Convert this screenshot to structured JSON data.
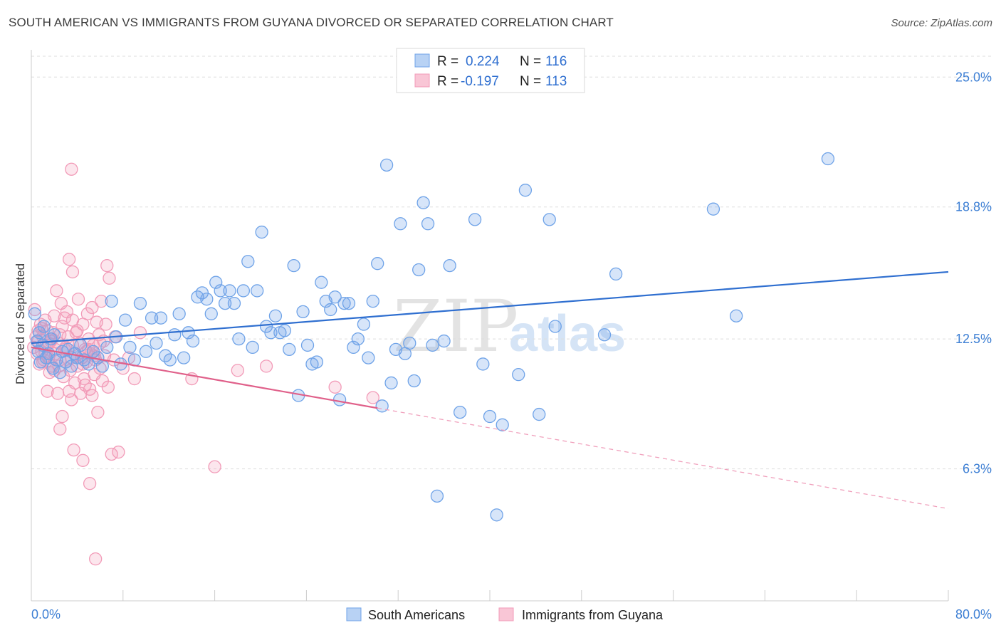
{
  "title": "SOUTH AMERICAN VS IMMIGRANTS FROM GUYANA DIVORCED OR SEPARATED CORRELATION CHART",
  "source": "Source: ZipAtlas.com",
  "watermark": {
    "zip": "ZIP",
    "atlas": "atlas"
  },
  "colors": {
    "blue": "#6fa3e8",
    "blue_line": "#2f6fd0",
    "pink": "#f29bb8",
    "pink_line": "#e0608a",
    "tick_text": "#3d7fd4"
  },
  "legend": {
    "rows": [
      {
        "r_label": "R =",
        "r_value": "0.224",
        "n_label": "N =",
        "n_value": "116"
      },
      {
        "r_label": "R =",
        "r_value": "-0.197",
        "n_label": "N =",
        "n_value": "113"
      }
    ]
  },
  "chart_data": {
    "type": "scatter",
    "xlabel": "",
    "ylabel": "Divorced or Separated",
    "xlim": [
      0,
      80
    ],
    "ylim": [
      0,
      26.3
    ],
    "x_tick_labels": [
      "0.0%",
      "80.0%"
    ],
    "y_ticks": [
      25.0,
      18.8,
      12.5,
      6.3
    ],
    "y_tick_labels": [
      "25.0%",
      "18.8%",
      "12.5%",
      "6.3%"
    ],
    "grid": "horizontal dashed",
    "legend_placement": "top-center",
    "series": [
      {
        "name": "South Americans",
        "trend": {
          "x": [
            0,
            80
          ],
          "y": [
            12.3,
            15.7
          ],
          "style": "solid"
        },
        "points": [
          [
            0.3,
            13.7
          ],
          [
            0.5,
            12.4
          ],
          [
            0.6,
            11.9
          ],
          [
            0.7,
            12.8
          ],
          [
            0.8,
            11.4
          ],
          [
            1.0,
            12.2
          ],
          [
            1.1,
            13.1
          ],
          [
            1.3,
            11.6
          ],
          [
            1.5,
            11.8
          ],
          [
            1.7,
            12.5
          ],
          [
            1.9,
            11.1
          ],
          [
            2.0,
            12.7
          ],
          [
            2.2,
            11.5
          ],
          [
            2.5,
            10.9
          ],
          [
            2.7,
            11.9
          ],
          [
            3.0,
            11.4
          ],
          [
            3.2,
            12.0
          ],
          [
            3.5,
            11.2
          ],
          [
            3.8,
            11.8
          ],
          [
            4.0,
            11.6
          ],
          [
            4.3,
            12.2
          ],
          [
            4.6,
            11.5
          ],
          [
            5.0,
            11.3
          ],
          [
            5.4,
            11.9
          ],
          [
            5.8,
            11.6
          ],
          [
            6.2,
            11.2
          ],
          [
            6.6,
            12.1
          ],
          [
            7.0,
            14.3
          ],
          [
            7.4,
            12.6
          ],
          [
            7.8,
            11.3
          ],
          [
            8.2,
            13.4
          ],
          [
            8.6,
            12.1
          ],
          [
            9.0,
            11.5
          ],
          [
            9.5,
            14.2
          ],
          [
            10.0,
            11.9
          ],
          [
            10.5,
            13.5
          ],
          [
            10.9,
            12.3
          ],
          [
            11.3,
            13.5
          ],
          [
            11.7,
            11.7
          ],
          [
            12.1,
            11.5
          ],
          [
            12.5,
            12.7
          ],
          [
            12.9,
            13.7
          ],
          [
            13.3,
            11.6
          ],
          [
            13.7,
            12.8
          ],
          [
            14.1,
            12.4
          ],
          [
            14.5,
            14.5
          ],
          [
            14.9,
            14.7
          ],
          [
            15.3,
            14.4
          ],
          [
            15.7,
            13.7
          ],
          [
            16.1,
            15.2
          ],
          [
            16.5,
            14.8
          ],
          [
            16.9,
            14.2
          ],
          [
            17.3,
            14.8
          ],
          [
            17.7,
            14.2
          ],
          [
            18.1,
            12.5
          ],
          [
            18.5,
            14.8
          ],
          [
            18.9,
            16.2
          ],
          [
            19.3,
            12.1
          ],
          [
            19.7,
            14.8
          ],
          [
            20.1,
            17.6
          ],
          [
            20.5,
            13.1
          ],
          [
            20.9,
            12.8
          ],
          [
            21.3,
            13.6
          ],
          [
            21.7,
            12.8
          ],
          [
            22.1,
            12.9
          ],
          [
            22.5,
            12.0
          ],
          [
            22.9,
            16.0
          ],
          [
            23.3,
            9.8
          ],
          [
            23.7,
            13.8
          ],
          [
            24.1,
            12.2
          ],
          [
            24.5,
            11.3
          ],
          [
            24.9,
            11.4
          ],
          [
            25.3,
            15.2
          ],
          [
            25.7,
            14.3
          ],
          [
            26.1,
            13.9
          ],
          [
            26.5,
            14.5
          ],
          [
            26.9,
            9.6
          ],
          [
            27.3,
            14.2
          ],
          [
            27.7,
            14.2
          ],
          [
            28.1,
            12.1
          ],
          [
            28.5,
            12.5
          ],
          [
            29.0,
            13.2
          ],
          [
            29.4,
            11.6
          ],
          [
            29.8,
            14.3
          ],
          [
            30.2,
            16.1
          ],
          [
            30.6,
            9.3
          ],
          [
            31.0,
            20.8
          ],
          [
            31.4,
            10.4
          ],
          [
            31.8,
            12.0
          ],
          [
            32.2,
            18.0
          ],
          [
            32.6,
            11.8
          ],
          [
            33.0,
            12.3
          ],
          [
            33.4,
            10.5
          ],
          [
            33.8,
            15.8
          ],
          [
            34.2,
            19.0
          ],
          [
            34.6,
            18.0
          ],
          [
            35.0,
            12.2
          ],
          [
            35.4,
            5.0
          ],
          [
            36.0,
            12.4
          ],
          [
            36.5,
            16.0
          ],
          [
            37.4,
            9.0
          ],
          [
            38.7,
            18.2
          ],
          [
            39.4,
            11.3
          ],
          [
            40.0,
            8.8
          ],
          [
            40.6,
            4.1
          ],
          [
            41.1,
            8.4
          ],
          [
            42.5,
            10.8
          ],
          [
            43.1,
            19.6
          ],
          [
            44.3,
            8.9
          ],
          [
            45.2,
            18.2
          ],
          [
            45.7,
            13.1
          ],
          [
            50.0,
            12.7
          ],
          [
            51.0,
            15.6
          ],
          [
            59.5,
            18.7
          ],
          [
            61.5,
            13.6
          ],
          [
            69.5,
            21.1
          ]
        ]
      },
      {
        "name": "Immigrants from Guyana",
        "trend": {
          "x": [
            0,
            30.2
          ],
          "y": [
            12.1,
            9.2
          ],
          "style": "solid"
        },
        "trend_extension": {
          "x": [
            30.2,
            80
          ],
          "y": [
            9.2,
            4.4
          ],
          "style": "dashed"
        },
        "points": [
          [
            0.2,
            12.1
          ],
          [
            0.3,
            13.9
          ],
          [
            0.4,
            12.6
          ],
          [
            0.5,
            11.8
          ],
          [
            0.6,
            12.9
          ],
          [
            0.7,
            11.3
          ],
          [
            0.8,
            13.2
          ],
          [
            0.9,
            11.9
          ],
          [
            1.0,
            12.6
          ],
          [
            1.1,
            11.5
          ],
          [
            1.2,
            13.4
          ],
          [
            1.3,
            12.2
          ],
          [
            1.4,
            12.9
          ],
          [
            1.5,
            11.6
          ],
          [
            1.6,
            10.9
          ],
          [
            1.7,
            12.4
          ],
          [
            1.8,
            11.2
          ],
          [
            1.9,
            12.8
          ],
          [
            2.0,
            13.6
          ],
          [
            2.1,
            11.8
          ],
          [
            2.2,
            14.8
          ],
          [
            2.3,
            9.9
          ],
          [
            2.4,
            12.3
          ],
          [
            2.5,
            11.5
          ],
          [
            2.6,
            14.2
          ],
          [
            2.7,
            13.1
          ],
          [
            2.8,
            10.7
          ],
          [
            2.9,
            12.0
          ],
          [
            3.0,
            11.4
          ],
          [
            3.1,
            13.8
          ],
          [
            3.2,
            12.6
          ],
          [
            3.3,
            16.3
          ],
          [
            3.4,
            11.0
          ],
          [
            3.5,
            9.6
          ],
          [
            3.6,
            13.4
          ],
          [
            3.7,
            11.8
          ],
          [
            3.8,
            10.4
          ],
          [
            3.9,
            12.8
          ],
          [
            4.0,
            11.2
          ],
          [
            4.1,
            14.4
          ],
          [
            4.2,
            12.3
          ],
          [
            4.3,
            9.9
          ],
          [
            4.4,
            11.6
          ],
          [
            4.5,
            13.2
          ],
          [
            4.6,
            10.6
          ],
          [
            4.7,
            12.0
          ],
          [
            4.8,
            11.4
          ],
          [
            4.9,
            13.7
          ],
          [
            5.0,
            12.5
          ],
          [
            5.1,
            10.1
          ],
          [
            5.2,
            11.8
          ],
          [
            5.3,
            14.0
          ],
          [
            5.4,
            12.2
          ],
          [
            5.5,
            10.8
          ],
          [
            5.6,
            11.5
          ],
          [
            5.7,
            13.3
          ],
          [
            5.8,
            9.0
          ],
          [
            5.9,
            12.7
          ],
          [
            6.0,
            11.1
          ],
          [
            6.1,
            14.3
          ],
          [
            6.2,
            10.5
          ],
          [
            6.3,
            12.4
          ],
          [
            6.4,
            11.7
          ],
          [
            6.5,
            13.2
          ],
          [
            6.6,
            16.0
          ],
          [
            6.7,
            10.2
          ],
          [
            6.8,
            15.4
          ],
          [
            7.0,
            7.0
          ],
          [
            7.3,
            12.6
          ],
          [
            7.6,
            7.1
          ],
          [
            8.0,
            11.1
          ],
          [
            8.5,
            11.6
          ],
          [
            9.0,
            10.6
          ],
          [
            9.5,
            12.8
          ],
          [
            14.0,
            10.6
          ],
          [
            16.0,
            6.4
          ],
          [
            18.0,
            11.0
          ],
          [
            20.5,
            11.2
          ],
          [
            26.5,
            10.2
          ],
          [
            29.8,
            9.7
          ],
          [
            1.0,
            11.4
          ],
          [
            1.5,
            12.3
          ],
          [
            2.0,
            11.0
          ],
          [
            2.5,
            12.7
          ],
          [
            3.0,
            12.1
          ],
          [
            3.5,
            11.6
          ],
          [
            4.0,
            12.9
          ],
          [
            4.5,
            11.3
          ],
          [
            5.0,
            12.0
          ],
          [
            5.5,
            11.7
          ],
          [
            0.6,
            12.4
          ],
          [
            1.2,
            11.8
          ],
          [
            1.8,
            12.5
          ],
          [
            2.4,
            11.2
          ],
          [
            3.6,
            12.2
          ],
          [
            4.8,
            11.9
          ],
          [
            6.0,
            12.3
          ],
          [
            7.2,
            11.5
          ],
          [
            0.9,
            13.0
          ],
          [
            2.1,
            12.0
          ],
          [
            3.3,
            10.0
          ],
          [
            2.7,
            8.8
          ],
          [
            2.5,
            8.2
          ],
          [
            3.7,
            7.2
          ],
          [
            4.5,
            6.7
          ],
          [
            4.7,
            10.3
          ],
          [
            5.3,
            9.8
          ],
          [
            5.1,
            5.6
          ],
          [
            5.6,
            2.0
          ],
          [
            3.5,
            20.6
          ],
          [
            3.6,
            15.7
          ],
          [
            1.4,
            10.0
          ],
          [
            2.9,
            13.5
          ]
        ]
      }
    ]
  },
  "bottom_legend": [
    "South Americans",
    "Immigrants from Guyana"
  ]
}
